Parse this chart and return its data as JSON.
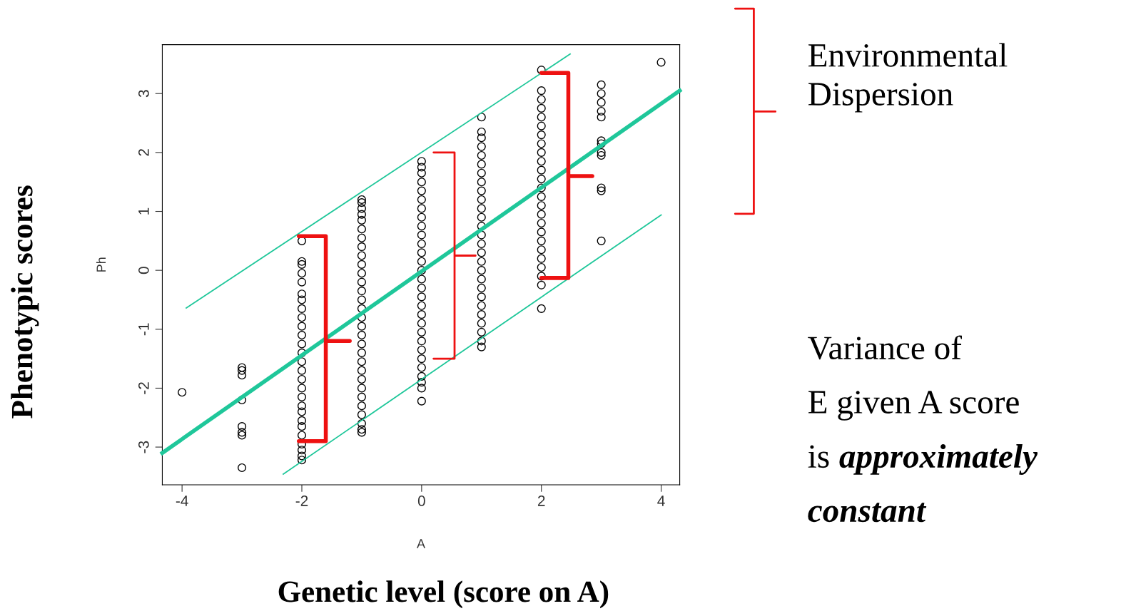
{
  "chart_data": {
    "type": "scatter",
    "xlabel": "A",
    "ylabel": "Ph",
    "xlim": [
      -4.33,
      4.31
    ],
    "ylim": [
      -3.64,
      3.83
    ],
    "xticks": [
      -4,
      -2,
      0,
      2,
      4
    ],
    "yticks": [
      -3,
      -2,
      -1,
      0,
      1,
      2,
      3
    ],
    "grid": false,
    "marker": "circle",
    "legend": false,
    "series": [
      {
        "color": "#000000",
        "x": [
          -4,
          -3,
          -3,
          -3,
          -3,
          -3,
          -3,
          -3,
          -3,
          -2,
          -2,
          -2,
          -2,
          -2,
          -2,
          -2,
          -2,
          -2,
          -2,
          -2,
          -2,
          -2,
          -2,
          -2,
          -2,
          -2,
          -2,
          -2,
          -2,
          -2,
          -2,
          -2,
          -2,
          -2,
          -2,
          -2,
          -1,
          -1,
          -1,
          -1,
          -1,
          -1,
          -1,
          -1,
          -1,
          -1,
          -1,
          -1,
          -1,
          -1,
          -1,
          -1,
          -1,
          -1,
          -1,
          -1,
          -1,
          -1,
          -1,
          -1,
          -1,
          -1,
          -1,
          -1,
          -1,
          -1,
          0,
          0,
          0,
          0,
          0,
          0,
          0,
          0,
          0,
          0,
          0,
          0,
          0,
          0,
          0,
          0,
          0,
          0,
          0,
          0,
          0,
          0,
          0,
          0,
          0,
          0,
          0,
          0,
          0,
          1,
          1,
          1,
          1,
          1,
          1,
          1,
          1,
          1,
          1,
          1,
          1,
          1,
          1,
          1,
          1,
          1,
          1,
          1,
          1,
          1,
          1,
          1,
          1,
          1,
          1,
          1,
          2,
          2,
          2,
          2,
          2,
          2,
          2,
          2,
          2,
          2,
          2,
          2,
          2,
          2,
          2,
          2,
          2,
          2,
          2,
          2,
          2,
          2,
          2,
          2,
          2,
          3,
          3,
          3,
          3,
          3,
          3,
          3,
          3,
          3,
          3,
          3,
          3,
          4
        ],
        "values": [
          -2.07,
          -1.65,
          -1.7,
          -1.78,
          -2.2,
          -2.65,
          -2.75,
          -2.8,
          -3.35,
          -3.22,
          -3.15,
          -3.05,
          -2.95,
          -2.8,
          -2.65,
          -2.55,
          -2.4,
          -2.3,
          -2.15,
          -2.0,
          -1.85,
          -1.7,
          -1.55,
          -1.4,
          -1.25,
          -1.1,
          -0.95,
          -0.8,
          -0.65,
          -0.5,
          -0.4,
          -0.2,
          -0.05,
          0.1,
          0.15,
          0.5,
          -2.75,
          -2.7,
          -2.6,
          -2.45,
          -2.3,
          -2.15,
          -2.0,
          -1.85,
          -1.7,
          -1.55,
          -1.4,
          -1.25,
          -1.1,
          -0.95,
          -0.8,
          -0.65,
          -0.5,
          -0.35,
          -0.2,
          -0.05,
          0.1,
          0.25,
          0.4,
          0.55,
          0.7,
          0.85,
          0.95,
          1.05,
          1.15,
          1.2,
          -2.22,
          -2.0,
          -1.9,
          -1.8,
          -1.65,
          -1.5,
          -1.35,
          -1.2,
          -1.05,
          -0.9,
          -0.75,
          -0.6,
          -0.45,
          -0.3,
          -0.15,
          0,
          0.15,
          0.3,
          0.45,
          0.6,
          0.75,
          0.9,
          1.05,
          1.2,
          1.35,
          1.5,
          1.65,
          1.75,
          1.85,
          -1.3,
          -1.2,
          -1.05,
          -0.9,
          -0.75,
          -0.6,
          -0.45,
          -0.3,
          -0.15,
          0,
          0.15,
          0.3,
          0.45,
          0.6,
          0.75,
          0.9,
          1.05,
          1.2,
          1.35,
          1.5,
          1.65,
          1.8,
          1.95,
          2.1,
          2.25,
          2.35,
          2.6,
          -0.65,
          -0.25,
          -0.1,
          0.05,
          0.2,
          0.35,
          0.5,
          0.65,
          0.8,
          0.95,
          1.1,
          1.25,
          1.4,
          1.55,
          1.7,
          1.85,
          2.0,
          2.15,
          2.3,
          2.45,
          2.6,
          2.75,
          2.9,
          3.05,
          3.4,
          0.5,
          1.35,
          1.4,
          1.95,
          2.0,
          2.15,
          2.2,
          2.6,
          2.7,
          2.85,
          3.0,
          3.15,
          3.53
        ]
      },
      {
        "type": "line",
        "color": "#1fc79a",
        "marker": "none",
        "x": [
          -4.33,
          4.31
        ],
        "values": [
          -3.1,
          3.05
        ]
      },
      {
        "type": "line",
        "color": "#1fc79a",
        "marker": "none",
        "x": [
          -3.93,
          2.48
        ],
        "values": [
          -0.64,
          3.67
        ]
      },
      {
        "type": "line",
        "color": "#1fc79a",
        "marker": "none",
        "x": [
          -2.31,
          4.0
        ],
        "values": [
          -3.46,
          0.94
        ]
      }
    ],
    "annotations": [
      "Phenotypic scores",
      "Genetic level (score on A)",
      "Environmental\nDispersion",
      "Variance of\nE given A score\nis",
      "approximately\nconstant"
    ]
  }
}
